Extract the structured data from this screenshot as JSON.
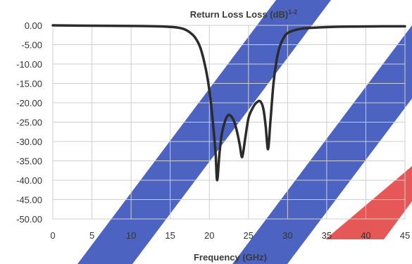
{
  "chart_data": {
    "type": "line",
    "title": "Return Loss Loss (dB)",
    "title_superscript": "1-2",
    "xlabel": "Frequency (GHz)",
    "ylabel": "",
    "xlim": [
      0,
      45
    ],
    "ylim": [
      -50,
      0
    ],
    "x_ticks": [
      "0",
      "5",
      "10",
      "15",
      "20",
      "25",
      "30",
      "35",
      "40",
      "45"
    ],
    "y_ticks": [
      "0.00",
      "-5.00",
      "-10.00",
      "-15.00",
      "-20.00",
      "-25.00",
      "-30.00",
      "-35.00",
      "-40.00",
      "-45.00",
      "-50.00"
    ],
    "grid": true,
    "legend": "none",
    "line_color": "#2b2b2b",
    "watermark_colors": [
      "#2f49b8",
      "#e23b3b"
    ],
    "series": [
      {
        "x": [
          0,
          5,
          10,
          12,
          14,
          15,
          16,
          16.8,
          17.5,
          18.2,
          18.8,
          19.3,
          19.8,
          20.2,
          20.5,
          20.8,
          21.0,
          21.3,
          21.6,
          22.0,
          22.4,
          22.8,
          23.2,
          23.6,
          23.9,
          24.2,
          24.6,
          25.0,
          25.5,
          26.0,
          26.5,
          26.9,
          27.2,
          27.5,
          27.8,
          28.2,
          28.6,
          29.0,
          29.5,
          30.0,
          31.0,
          32.0,
          33.5,
          35.0,
          37.0,
          40.0,
          42.0,
          44.0,
          45.0
        ],
        "y": [
          0,
          -0.1,
          -0.15,
          -0.2,
          -0.3,
          -0.4,
          -0.6,
          -1.0,
          -1.8,
          -3.2,
          -5.5,
          -9.0,
          -14.0,
          -20.0,
          -26.0,
          -33.0,
          -40.0,
          -33.0,
          -28.0,
          -24.8,
          -23.2,
          -23.5,
          -25.0,
          -28.0,
          -31.0,
          -34.0,
          -29.0,
          -24.0,
          -21.5,
          -20.0,
          -19.6,
          -21.5,
          -26.0,
          -32.0,
          -25.0,
          -15.0,
          -9.0,
          -5.5,
          -3.2,
          -2.0,
          -1.2,
          -0.8,
          -0.6,
          -0.45,
          -0.35,
          -0.3,
          -0.25,
          -0.25,
          -0.25
        ]
      }
    ]
  }
}
